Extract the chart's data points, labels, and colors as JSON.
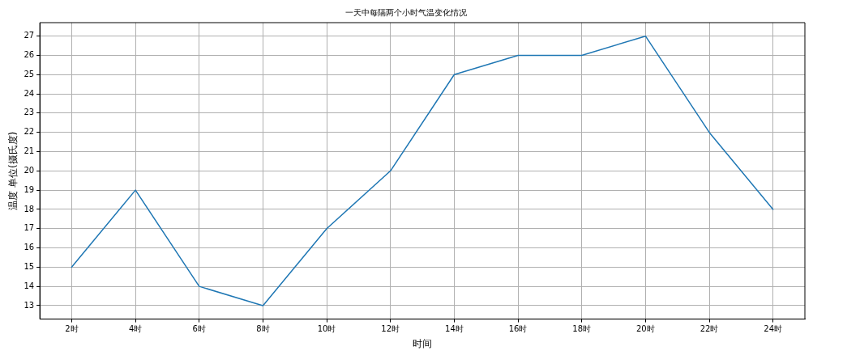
{
  "chart_data": {
    "type": "line",
    "title": "一天中每隔两个小时气温变化情况",
    "xlabel": "时间",
    "ylabel": "温度 单位(摄氏度)",
    "categories": [
      "2时",
      "4时",
      "6时",
      "8时",
      "10时",
      "12时",
      "14时",
      "16时",
      "18时",
      "20时",
      "22时",
      "24时"
    ],
    "series": [
      {
        "color": "#1f77b4",
        "values": [
          15,
          19,
          14,
          13,
          17,
          20,
          25,
          26,
          26,
          27,
          22,
          18
        ]
      }
    ],
    "ylim": [
      12.3,
      27.7
    ],
    "yticks": [
      13,
      14,
      15,
      16,
      17,
      18,
      19,
      20,
      21,
      22,
      23,
      24,
      25,
      26,
      27
    ],
    "grid": true,
    "legend": false,
    "marker": "none",
    "line_style": "solid"
  }
}
